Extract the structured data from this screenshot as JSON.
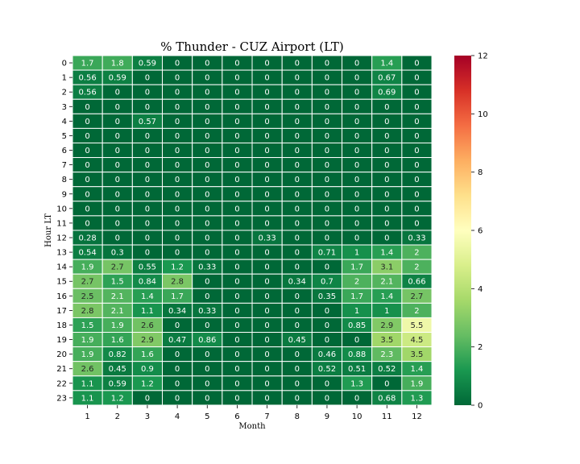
{
  "chart_data": {
    "type": "heatmap",
    "title": "% Thunder - CUZ Airport (LT)",
    "xlabel": "Month",
    "ylabel": "Hour LT",
    "x_categories": [
      "1",
      "2",
      "3",
      "4",
      "5",
      "6",
      "7",
      "8",
      "9",
      "10",
      "11",
      "12"
    ],
    "y_categories": [
      "0",
      "1",
      "2",
      "3",
      "4",
      "5",
      "6",
      "7",
      "8",
      "9",
      "10",
      "11",
      "12",
      "13",
      "14",
      "15",
      "16",
      "17",
      "18",
      "19",
      "20",
      "21",
      "22",
      "23"
    ],
    "values": [
      [
        1.7,
        1.8,
        0.59,
        0,
        0,
        0,
        0,
        0,
        0,
        0,
        1.4,
        0
      ],
      [
        0.56,
        0.59,
        0,
        0,
        0,
        0,
        0,
        0,
        0,
        0,
        0.67,
        0
      ],
      [
        0.56,
        0,
        0,
        0,
        0,
        0,
        0,
        0,
        0,
        0,
        0.69,
        0
      ],
      [
        0,
        0,
        0,
        0,
        0,
        0,
        0,
        0,
        0,
        0,
        0,
        0
      ],
      [
        0,
        0,
        0.57,
        0,
        0,
        0,
        0,
        0,
        0,
        0,
        0,
        0
      ],
      [
        0,
        0,
        0,
        0,
        0,
        0,
        0,
        0,
        0,
        0,
        0,
        0
      ],
      [
        0,
        0,
        0,
        0,
        0,
        0,
        0,
        0,
        0,
        0,
        0,
        0
      ],
      [
        0,
        0,
        0,
        0,
        0,
        0,
        0,
        0,
        0,
        0,
        0,
        0
      ],
      [
        0,
        0,
        0,
        0,
        0,
        0,
        0,
        0,
        0,
        0,
        0,
        0
      ],
      [
        0,
        0,
        0,
        0,
        0,
        0,
        0,
        0,
        0,
        0,
        0,
        0
      ],
      [
        0,
        0,
        0,
        0,
        0,
        0,
        0,
        0,
        0,
        0,
        0,
        0
      ],
      [
        0,
        0,
        0,
        0,
        0,
        0,
        0,
        0,
        0,
        0,
        0,
        0
      ],
      [
        0.28,
        0,
        0,
        0,
        0,
        0,
        0.33,
        0,
        0,
        0,
        0,
        0.33
      ],
      [
        0.54,
        0.3,
        0,
        0,
        0,
        0,
        0,
        0,
        0.71,
        1,
        1.4,
        2
      ],
      [
        1.9,
        2.7,
        0.55,
        1.2,
        0.33,
        0,
        0,
        0,
        0,
        1.7,
        3.1,
        2
      ],
      [
        2.7,
        1.5,
        0.84,
        2.8,
        0,
        0,
        0,
        0.34,
        0.7,
        2,
        2.1,
        0.66
      ],
      [
        2.5,
        2.1,
        1.4,
        1.7,
        0,
        0,
        0,
        0,
        0.35,
        1.7,
        1.4,
        2.7
      ],
      [
        2.8,
        2.1,
        1.1,
        0.34,
        0.33,
        0,
        0,
        0,
        0,
        1,
        1,
        2
      ],
      [
        1.5,
        1.9,
        2.6,
        0,
        0,
        0,
        0,
        0,
        0,
        0.85,
        2.9,
        5.5
      ],
      [
        1.9,
        1.6,
        2.9,
        0.47,
        0.86,
        0,
        0,
        0.45,
        0,
        0,
        3.5,
        4.5
      ],
      [
        1.9,
        0.82,
        1.6,
        0,
        0,
        0,
        0,
        0,
        0.46,
        0.88,
        2.3,
        3.5
      ],
      [
        2.6,
        0.45,
        0.9,
        0,
        0,
        0,
        0,
        0,
        0.52,
        0.51,
        0.52,
        1.4
      ],
      [
        1.1,
        0.59,
        1.2,
        0,
        0,
        0,
        0,
        0,
        0,
        1.3,
        0,
        1.9
      ],
      [
        1.1,
        1.2,
        0,
        0,
        0,
        0,
        0,
        0,
        0,
        0,
        0.68,
        1.3
      ]
    ],
    "vmin": 0,
    "vmax": 12,
    "colormap": "RdYlGn_r",
    "colorbar_ticks": [
      "0",
      "2",
      "4",
      "6",
      "8",
      "10",
      "12"
    ],
    "grid": true,
    "cell_border_color": "#ffffff"
  }
}
